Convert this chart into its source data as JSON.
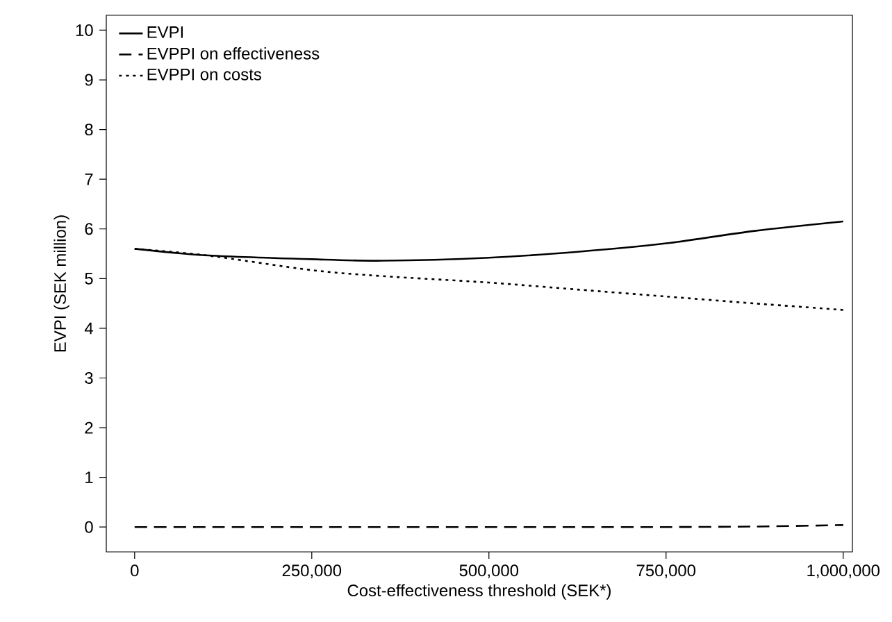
{
  "chart_data": {
    "type": "line",
    "xlabel": "Cost-effectiveness threshold (SEK*)",
    "ylabel": "EVPI (SEK million)",
    "xlim": [
      -40000,
      1013000
    ],
    "ylim": [
      -0.5,
      10.3
    ],
    "xticks": [
      0,
      {
        "value": 250000,
        "label": "250,000"
      },
      {
        "value": 500000,
        "label": "500,000"
      },
      {
        "value": 750000,
        "label": "750,000"
      },
      {
        "value": 1000000,
        "label": "1,000,000"
      }
    ],
    "yticks": [
      0,
      1,
      2,
      3,
      4,
      5,
      6,
      7,
      8,
      9,
      10
    ],
    "x": [
      0,
      100000,
      250000,
      350000,
      500000,
      625000,
      750000,
      875000,
      1000000
    ],
    "series": [
      {
        "name": "EVPI",
        "color": "#000000",
        "line_style": "solid",
        "values": [
          5.6,
          5.47,
          5.39,
          5.36,
          5.42,
          5.54,
          5.71,
          5.96,
          6.15
        ]
      },
      {
        "name": "EVPPI on effectiveness",
        "color": "#000000",
        "line_style": "dashed",
        "values": [
          0,
          0,
          0,
          0,
          0,
          0,
          0,
          0.01,
          0.04
        ]
      },
      {
        "name": "EVPPI on costs",
        "color": "#000000",
        "line_style": "dotted",
        "values": [
          5.6,
          5.47,
          5.17,
          5.05,
          4.92,
          4.78,
          4.64,
          4.5,
          4.37
        ]
      }
    ],
    "legend": "top left",
    "grid": false,
    "marker": "none"
  }
}
